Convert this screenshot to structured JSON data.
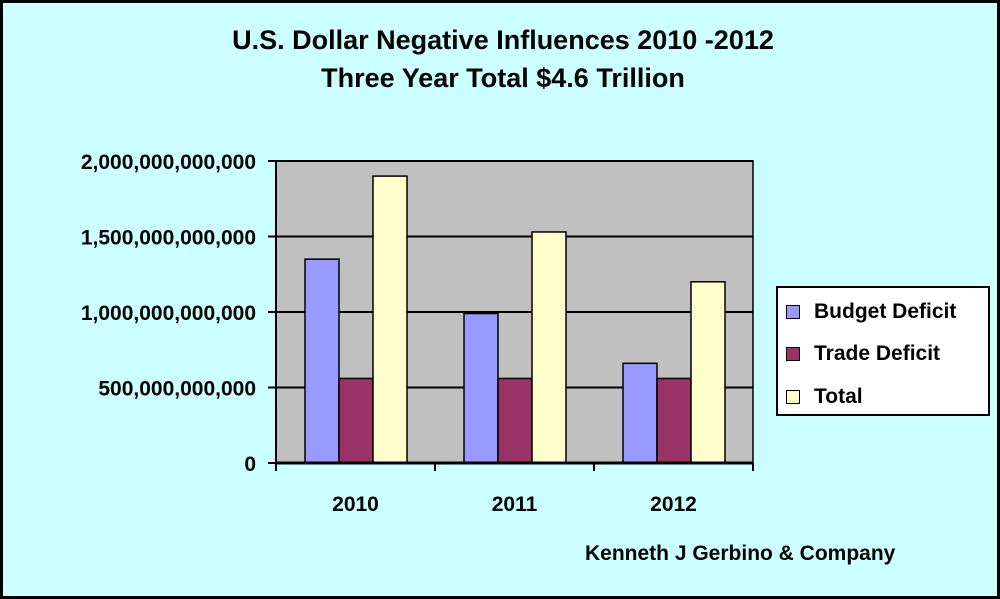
{
  "colors": {
    "background": "#ccffff",
    "plot_area": "#c0c0c0",
    "budget_deficit": "#9999ff",
    "trade_deficit": "#993366",
    "total": "#ffffcc"
  },
  "credit": "Kenneth J Gerbino & Company",
  "chart_data": {
    "type": "bar",
    "title": "U.S. Dollar Negative Influences 2010 -2012",
    "subtitle": "Three Year Total $4.6 Trillion",
    "categories": [
      "2010",
      "2011",
      "2012"
    ],
    "series": [
      {
        "name": "Budget Deficit",
        "color": "#9999ff",
        "values": [
          1350000000000,
          990000000000,
          660000000000
        ]
      },
      {
        "name": "Trade Deficit",
        "color": "#993366",
        "values": [
          560000000000,
          560000000000,
          560000000000
        ]
      },
      {
        "name": "Total",
        "color": "#ffffcc",
        "values": [
          1900000000000,
          1530000000000,
          1200000000000
        ]
      }
    ],
    "ylim": [
      0,
      2000000000000
    ],
    "yticks": [
      0,
      500000000000,
      1000000000000,
      1500000000000,
      2000000000000
    ],
    "ytick_labels": [
      "0",
      "500,000,000,000",
      "1,000,000,000,000",
      "1,500,000,000,000",
      "2,000,000,000,000"
    ],
    "xlabel": "",
    "ylabel": "",
    "grid": true,
    "legend": "right"
  }
}
